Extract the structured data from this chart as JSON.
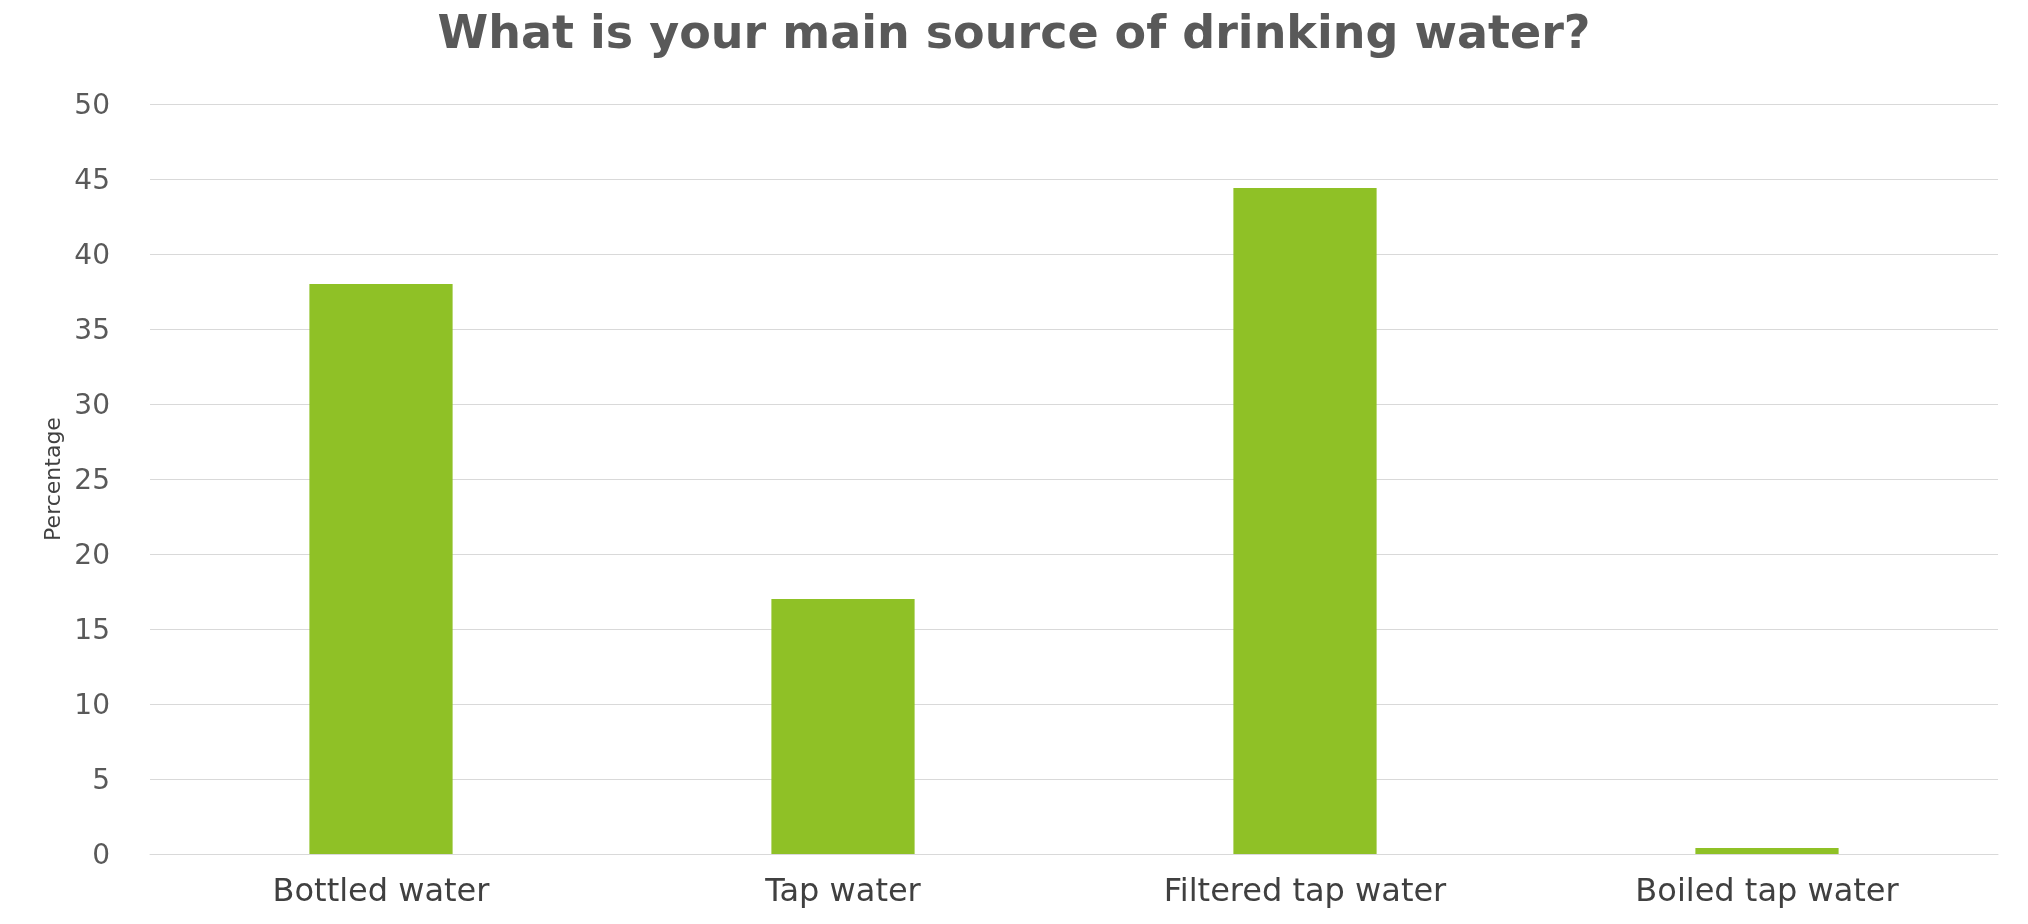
{
  "chart_data": {
    "type": "bar",
    "title": "What is your main source of drinking water?",
    "ylabel": "Percentage",
    "categories": [
      "Bottled water",
      "Tap water",
      "Filtered tap water",
      "Boiled tap water"
    ],
    "values": [
      38,
      17,
      44.4,
      0.4
    ],
    "color": "#8fc126",
    "ylim": [
      0,
      50
    ],
    "yticks": [
      0,
      5,
      10,
      15,
      20,
      25,
      30,
      35,
      40,
      45,
      50
    ],
    "grid": "y"
  }
}
